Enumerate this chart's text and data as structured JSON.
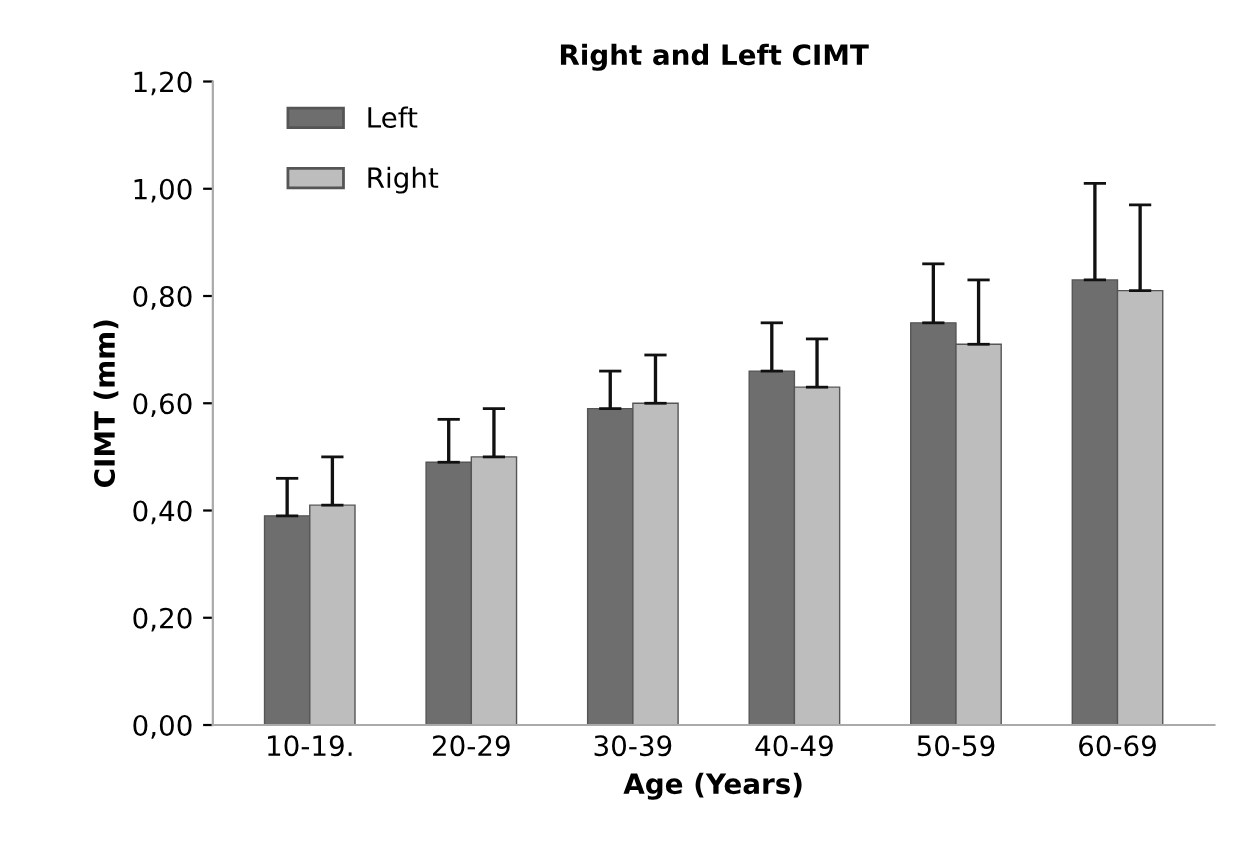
{
  "chart_data": {
    "type": "bar",
    "title": "Right and Left CIMT",
    "xlabel": "Age (Years)",
    "ylabel": "CIMT (mm)",
    "categories": [
      "10-19.",
      "20-29",
      "30-39",
      "40-49",
      "50-59",
      "60-69"
    ],
    "series": [
      {
        "name": "Left",
        "color": "#6e6e6e",
        "values": [
          0.39,
          0.49,
          0.59,
          0.66,
          0.75,
          0.83
        ],
        "errors": [
          [
            0.39,
            0.46
          ],
          [
            0.49,
            0.57
          ],
          [
            0.59,
            0.66
          ],
          [
            0.66,
            0.75
          ],
          [
            0.75,
            0.86
          ],
          [
            0.83,
            1.01
          ]
        ]
      },
      {
        "name": "Right",
        "color": "#bdbdbd",
        "values": [
          0.41,
          0.5,
          0.6,
          0.63,
          0.71,
          0.81
        ],
        "errors": [
          [
            0.41,
            0.5
          ],
          [
            0.5,
            0.59
          ],
          [
            0.6,
            0.69
          ],
          [
            0.63,
            0.72
          ],
          [
            0.71,
            0.83
          ],
          [
            0.81,
            0.97
          ]
        ]
      }
    ],
    "ylim": [
      0,
      1.2
    ],
    "yticks": [
      {
        "value": 0,
        "label": "0,00"
      },
      {
        "value": 0.2,
        "label": "0,20"
      },
      {
        "value": 0.4,
        "label": "0,40"
      },
      {
        "value": 0.6,
        "label": "0,60"
      },
      {
        "value": 0.8,
        "label": "0,80"
      },
      {
        "value": 1.0,
        "label": "1,00"
      },
      {
        "value": 1.2,
        "label": "1,20"
      }
    ],
    "grid": false,
    "legend": "top left"
  }
}
